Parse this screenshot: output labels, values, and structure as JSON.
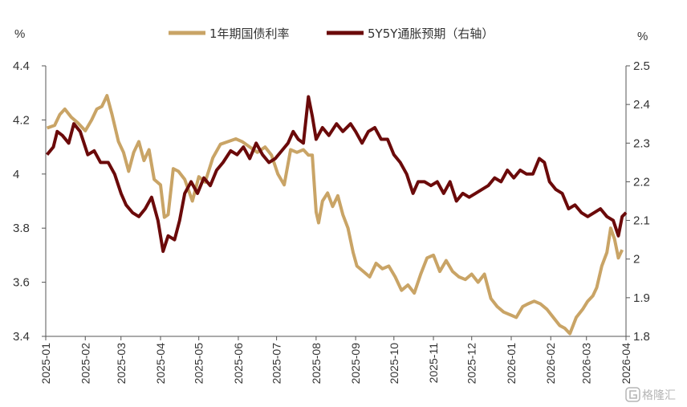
{
  "chart_data": {
    "type": "line",
    "left_unit": "%",
    "right_unit": "%",
    "left_axis": {
      "min": 3.4,
      "max": 4.4,
      "ticks": [
        "3.4",
        "3.6",
        "3.8",
        "4",
        "4.2",
        "4.4"
      ]
    },
    "right_axis": {
      "min": 1.8,
      "max": 2.5,
      "ticks": [
        "1.8",
        "1.9",
        "2",
        "2.1",
        "2.2",
        "2.3",
        "2.4",
        "2.5"
      ]
    },
    "x_ticks": [
      "2025-01",
      "2025-02",
      "2025-03",
      "2025-04",
      "2025-05",
      "2025-06",
      "2025-07",
      "2025-08",
      "2025-09",
      "2025-10",
      "2025-11",
      "2025-12",
      "2026-01",
      "2026-02",
      "2026-03",
      "2026-04"
    ],
    "x_range": [
      "2025-01-01",
      "2026-04-01"
    ],
    "grid": false,
    "legend_position": "top-center",
    "series": [
      {
        "name": "1年期国债利率",
        "axis": "left",
        "color": "#C9A466",
        "points": [
          [
            "2025-01-02",
            4.17
          ],
          [
            "2025-01-08",
            4.18
          ],
          [
            "2025-01-12",
            4.22
          ],
          [
            "2025-01-16",
            4.24
          ],
          [
            "2025-01-21",
            4.21
          ],
          [
            "2025-01-26",
            4.19
          ],
          [
            "2025-02-01",
            4.16
          ],
          [
            "2025-02-06",
            4.2
          ],
          [
            "2025-02-10",
            4.24
          ],
          [
            "2025-02-14",
            4.25
          ],
          [
            "2025-02-18",
            4.29
          ],
          [
            "2025-02-22",
            4.22
          ],
          [
            "2025-02-27",
            4.12
          ],
          [
            "2025-03-03",
            4.08
          ],
          [
            "2025-03-07",
            4.01
          ],
          [
            "2025-03-11",
            4.08
          ],
          [
            "2025-03-15",
            4.12
          ],
          [
            "2025-03-19",
            4.05
          ],
          [
            "2025-03-23",
            4.09
          ],
          [
            "2025-03-27",
            3.98
          ],
          [
            "2025-04-01",
            3.96
          ],
          [
            "2025-04-04",
            3.84
          ],
          [
            "2025-04-07",
            3.85
          ],
          [
            "2025-04-11",
            4.02
          ],
          [
            "2025-04-15",
            4.01
          ],
          [
            "2025-04-20",
            3.98
          ],
          [
            "2025-04-26",
            3.9
          ],
          [
            "2025-05-01",
            3.99
          ],
          [
            "2025-05-06",
            3.97
          ],
          [
            "2025-05-12",
            4.06
          ],
          [
            "2025-05-18",
            4.11
          ],
          [
            "2025-05-24",
            4.12
          ],
          [
            "2025-05-30",
            4.13
          ],
          [
            "2025-06-04",
            4.12
          ],
          [
            "2025-06-10",
            4.1
          ],
          [
            "2025-06-16",
            4.08
          ],
          [
            "2025-06-22",
            4.1
          ],
          [
            "2025-06-27",
            4.07
          ],
          [
            "2025-07-02",
            4.0
          ],
          [
            "2025-07-07",
            3.96
          ],
          [
            "2025-07-12",
            4.09
          ],
          [
            "2025-07-17",
            4.08
          ],
          [
            "2025-07-22",
            4.09
          ],
          [
            "2025-07-26",
            4.07
          ],
          [
            "2025-07-29",
            4.07
          ],
          [
            "2025-08-01",
            3.86
          ],
          [
            "2025-08-03",
            3.82
          ],
          [
            "2025-08-06",
            3.9
          ],
          [
            "2025-08-10",
            3.93
          ],
          [
            "2025-08-14",
            3.88
          ],
          [
            "2025-08-18",
            3.92
          ],
          [
            "2025-08-22",
            3.85
          ],
          [
            "2025-08-26",
            3.8
          ],
          [
            "2025-08-30",
            3.71
          ],
          [
            "2025-09-02",
            3.66
          ],
          [
            "2025-09-07",
            3.64
          ],
          [
            "2025-09-12",
            3.62
          ],
          [
            "2025-09-17",
            3.67
          ],
          [
            "2025-09-22",
            3.65
          ],
          [
            "2025-09-27",
            3.66
          ],
          [
            "2025-10-02",
            3.62
          ],
          [
            "2025-10-07",
            3.57
          ],
          [
            "2025-10-12",
            3.59
          ],
          [
            "2025-10-17",
            3.56
          ],
          [
            "2025-10-22",
            3.63
          ],
          [
            "2025-10-27",
            3.69
          ],
          [
            "2025-11-01",
            3.7
          ],
          [
            "2025-11-06",
            3.64
          ],
          [
            "2025-11-11",
            3.68
          ],
          [
            "2025-11-16",
            3.64
          ],
          [
            "2025-11-21",
            3.62
          ],
          [
            "2025-11-26",
            3.61
          ],
          [
            "2025-12-01",
            3.63
          ],
          [
            "2025-12-06",
            3.6
          ],
          [
            "2025-12-11",
            3.63
          ],
          [
            "2025-12-16",
            3.54
          ],
          [
            "2025-12-21",
            3.51
          ],
          [
            "2025-12-26",
            3.49
          ],
          [
            "2025-12-31",
            3.48
          ],
          [
            "2026-01-05",
            3.47
          ],
          [
            "2026-01-10",
            3.51
          ],
          [
            "2026-01-14",
            3.52
          ],
          [
            "2026-01-19",
            3.53
          ],
          [
            "2026-01-24",
            3.52
          ],
          [
            "2026-01-29",
            3.5
          ],
          [
            "2026-02-03",
            3.47
          ],
          [
            "2026-02-08",
            3.44
          ],
          [
            "2026-02-12",
            3.43
          ],
          [
            "2026-02-16",
            3.41
          ],
          [
            "2026-02-21",
            3.47
          ],
          [
            "2026-02-26",
            3.5
          ],
          [
            "2026-03-02",
            3.53
          ],
          [
            "2026-03-06",
            3.55
          ],
          [
            "2026-03-09",
            3.58
          ],
          [
            "2026-03-13",
            3.66
          ],
          [
            "2026-03-17",
            3.71
          ],
          [
            "2026-03-20",
            3.8
          ],
          [
            "2026-03-23",
            3.76
          ],
          [
            "2026-03-26",
            3.69
          ],
          [
            "2026-03-29",
            3.72
          ]
        ]
      },
      {
        "name": "5Y5Y通胀预期（右轴）",
        "axis": "right",
        "color": "#6B0A0A",
        "points": [
          [
            "2025-01-02",
            2.27
          ],
          [
            "2025-01-07",
            2.29
          ],
          [
            "2025-01-10",
            2.33
          ],
          [
            "2025-01-14",
            2.32
          ],
          [
            "2025-01-19",
            2.3
          ],
          [
            "2025-01-23",
            2.35
          ],
          [
            "2025-01-28",
            2.33
          ],
          [
            "2025-02-03",
            2.27
          ],
          [
            "2025-02-08",
            2.28
          ],
          [
            "2025-02-13",
            2.25
          ],
          [
            "2025-02-19",
            2.25
          ],
          [
            "2025-02-24",
            2.22
          ],
          [
            "2025-03-01",
            2.17
          ],
          [
            "2025-03-05",
            2.14
          ],
          [
            "2025-03-10",
            2.12
          ],
          [
            "2025-03-15",
            2.11
          ],
          [
            "2025-03-20",
            2.13
          ],
          [
            "2025-03-25",
            2.16
          ],
          [
            "2025-03-30",
            2.1
          ],
          [
            "2025-04-03",
            2.02
          ],
          [
            "2025-04-07",
            2.06
          ],
          [
            "2025-04-12",
            2.05
          ],
          [
            "2025-04-16",
            2.1
          ],
          [
            "2025-04-20",
            2.17
          ],
          [
            "2025-04-25",
            2.2
          ],
          [
            "2025-04-30",
            2.17
          ],
          [
            "2025-05-05",
            2.21
          ],
          [
            "2025-05-10",
            2.19
          ],
          [
            "2025-05-15",
            2.23
          ],
          [
            "2025-05-20",
            2.25
          ],
          [
            "2025-05-26",
            2.28
          ],
          [
            "2025-05-31",
            2.27
          ],
          [
            "2025-06-05",
            2.29
          ],
          [
            "2025-06-10",
            2.26
          ],
          [
            "2025-06-15",
            2.3
          ],
          [
            "2025-06-20",
            2.27
          ],
          [
            "2025-06-25",
            2.25
          ],
          [
            "2025-06-30",
            2.26
          ],
          [
            "2025-07-05",
            2.28
          ],
          [
            "2025-07-10",
            2.3
          ],
          [
            "2025-07-14",
            2.33
          ],
          [
            "2025-07-18",
            2.31
          ],
          [
            "2025-07-22",
            2.3
          ],
          [
            "2025-07-26",
            2.42
          ],
          [
            "2025-07-29",
            2.37
          ],
          [
            "2025-08-01",
            2.31
          ],
          [
            "2025-08-06",
            2.34
          ],
          [
            "2025-08-11",
            2.32
          ],
          [
            "2025-08-17",
            2.35
          ],
          [
            "2025-08-22",
            2.33
          ],
          [
            "2025-08-28",
            2.35
          ],
          [
            "2025-09-01",
            2.33
          ],
          [
            "2025-09-06",
            2.3
          ],
          [
            "2025-09-11",
            2.33
          ],
          [
            "2025-09-16",
            2.34
          ],
          [
            "2025-09-21",
            2.31
          ],
          [
            "2025-09-26",
            2.31
          ],
          [
            "2025-10-01",
            2.27
          ],
          [
            "2025-10-06",
            2.25
          ],
          [
            "2025-10-11",
            2.22
          ],
          [
            "2025-10-16",
            2.17
          ],
          [
            "2025-10-20",
            2.2
          ],
          [
            "2025-10-25",
            2.2
          ],
          [
            "2025-10-30",
            2.19
          ],
          [
            "2025-11-04",
            2.2
          ],
          [
            "2025-11-09",
            2.17
          ],
          [
            "2025-11-14",
            2.2
          ],
          [
            "2025-11-19",
            2.15
          ],
          [
            "2025-11-24",
            2.17
          ],
          [
            "2025-11-29",
            2.16
          ],
          [
            "2025-12-04",
            2.17
          ],
          [
            "2025-12-09",
            2.18
          ],
          [
            "2025-12-14",
            2.19
          ],
          [
            "2025-12-19",
            2.21
          ],
          [
            "2025-12-24",
            2.2
          ],
          [
            "2025-12-29",
            2.23
          ],
          [
            "2026-01-03",
            2.21
          ],
          [
            "2026-01-08",
            2.23
          ],
          [
            "2026-01-13",
            2.22
          ],
          [
            "2026-01-18",
            2.22
          ],
          [
            "2026-01-23",
            2.26
          ],
          [
            "2026-01-27",
            2.25
          ],
          [
            "2026-01-31",
            2.2
          ],
          [
            "2026-02-05",
            2.18
          ],
          [
            "2026-02-10",
            2.17
          ],
          [
            "2026-02-15",
            2.13
          ],
          [
            "2026-02-20",
            2.14
          ],
          [
            "2026-02-25",
            2.12
          ],
          [
            "2026-03-02",
            2.11
          ],
          [
            "2026-03-07",
            2.12
          ],
          [
            "2026-03-12",
            2.13
          ],
          [
            "2026-03-17",
            2.11
          ],
          [
            "2026-03-22",
            2.1
          ],
          [
            "2026-03-26",
            2.06
          ],
          [
            "2026-03-29",
            2.11
          ],
          [
            "2026-04-01",
            2.12
          ]
        ]
      }
    ]
  },
  "watermark": {
    "text": "格隆汇"
  }
}
